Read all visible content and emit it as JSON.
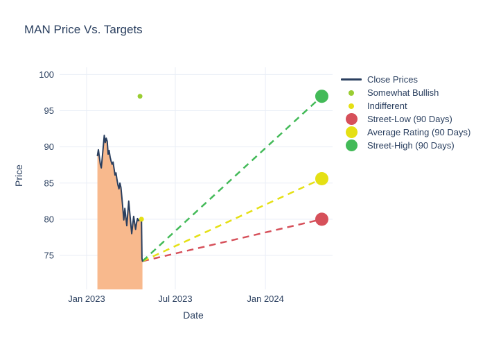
{
  "chart": {
    "title": "MAN Price Vs. Targets"
  },
  "chart_data": {
    "type": "line",
    "title": "MAN Price Vs. Targets",
    "xlabel": "Date",
    "ylabel": "Price",
    "ylim": [
      70.3,
      101.0
    ],
    "x_range_dates": [
      "2022-11-10",
      "2024-05-17"
    ],
    "y_ticks": [
      75,
      80,
      85,
      90,
      95,
      100
    ],
    "x_ticks": [
      {
        "label": "Jan 2023",
        "date": "2023-01-01"
      },
      {
        "label": "Jul 2023",
        "date": "2023-07-01"
      },
      {
        "label": "Jan 2024",
        "date": "2024-01-01"
      }
    ],
    "grid": true,
    "legend_position": "right",
    "close_prices": {
      "label": "Close Prices",
      "line_color": "#2a3f5f",
      "fill_color": "#f8b98d",
      "dates": [
        "2023-01-23",
        "2023-01-25",
        "2023-01-27",
        "2023-01-29",
        "2023-01-31",
        "2023-02-02",
        "2023-02-04",
        "2023-02-06",
        "2023-02-08",
        "2023-02-10",
        "2023-02-12",
        "2023-02-14",
        "2023-02-16",
        "2023-02-18",
        "2023-02-20",
        "2023-02-22",
        "2023-02-24",
        "2023-02-26",
        "2023-02-28",
        "2023-03-02",
        "2023-03-04",
        "2023-03-06",
        "2023-03-08",
        "2023-03-10",
        "2023-03-12",
        "2023-03-14",
        "2023-03-16",
        "2023-03-18",
        "2023-03-20",
        "2023-03-22",
        "2023-03-24",
        "2023-03-26",
        "2023-03-28",
        "2023-03-30",
        "2023-04-01",
        "2023-04-03",
        "2023-04-05",
        "2023-04-07",
        "2023-04-09",
        "2023-04-11",
        "2023-04-13",
        "2023-04-15",
        "2023-04-17",
        "2023-04-19",
        "2023-04-21",
        "2023-04-23",
        "2023-04-24",
        "2023-04-25"
      ],
      "values": [
        88.8,
        89.6,
        88.6,
        87.6,
        87.1,
        88.5,
        90.0,
        91.6,
        90.6,
        91.2,
        90.8,
        89.0,
        89.5,
        88.6,
        88.0,
        87.6,
        87.9,
        87.0,
        86.1,
        86.4,
        85.5,
        84.7,
        84.2,
        85.0,
        84.4,
        83.0,
        81.5,
        79.9,
        81.5,
        80.3,
        79.1,
        80.8,
        82.5,
        81.0,
        79.5,
        78.0,
        79.2,
        80.4,
        79.5,
        78.6,
        79.5,
        80.1,
        79.8,
        79.9,
        80.2,
        80.0,
        74.6,
        74.2
      ]
    },
    "ratings": [
      {
        "key": "somewhat-bullish",
        "label": "Somewhat Bullish",
        "color": "#9acd32",
        "date": "2023-04-20",
        "value": 97.0
      },
      {
        "key": "indifferent",
        "label": "Indifferent",
        "color": "#e5e014",
        "date": "2023-04-23",
        "value": 80.0
      }
    ],
    "targets": {
      "from": {
        "date": "2023-04-25",
        "value": 74.2
      },
      "to_date": "2024-04-25",
      "points": [
        {
          "key": "street-low",
          "label": "Street-Low (90 Days)",
          "color": "#d6505a",
          "value": 80.0
        },
        {
          "key": "average-rating",
          "label": "Average Rating (90 Days)",
          "color": "#e5e014",
          "value": 85.6
        },
        {
          "key": "street-high",
          "label": "Street-High (90 Days)",
          "color": "#43ba58",
          "value": 97.0
        }
      ]
    }
  },
  "legend": {
    "items": [
      {
        "label": "Close Prices",
        "swatch": "line",
        "color": "#2a3f5f"
      },
      {
        "label": "Somewhat Bullish",
        "swatch": "dot-small",
        "color": "#9acd32"
      },
      {
        "label": "Indifferent",
        "swatch": "dot-small",
        "color": "#e5e014"
      },
      {
        "label": "Street-Low (90 Days)",
        "swatch": "dot-large",
        "color": "#d6505a"
      },
      {
        "label": "Average Rating (90 Days)",
        "swatch": "dot-large",
        "color": "#e5e014"
      },
      {
        "label": "Street-High (90 Days)",
        "swatch": "dot-large",
        "color": "#43ba58"
      }
    ]
  },
  "style": {
    "grid_color": "#e9eef6",
    "text_color": "#2a3f5f",
    "background": "#ffffff"
  }
}
